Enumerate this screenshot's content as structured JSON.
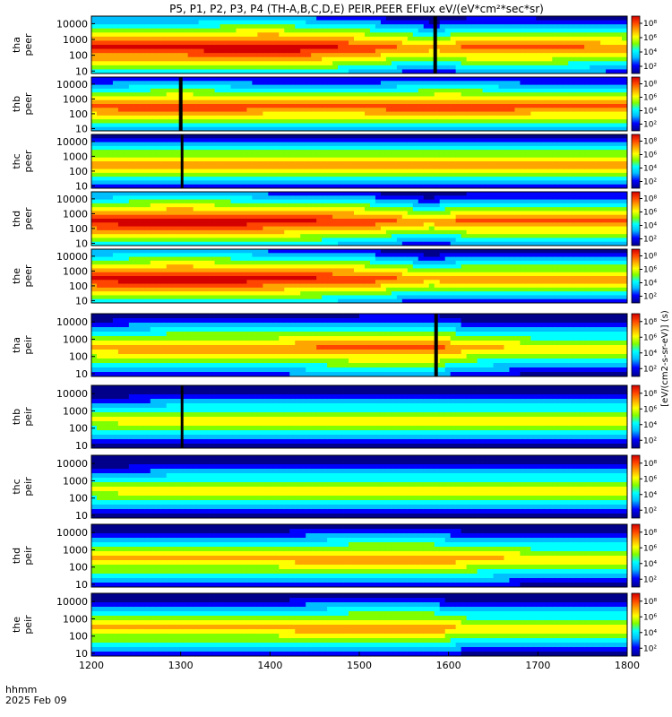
{
  "title": "P5, P1, P2, P3, P4 (TH-A,B,C,D,E) PEIR,PEER EFlux eV/(eV*cm²*sec*sr)",
  "colorbar_label": "[eV/(cm2-s-sr-eV)] (s)",
  "colors": {
    "palette": [
      "#00008b",
      "#0000ff",
      "#00bfff",
      "#00ffff",
      "#7fff00",
      "#ffff00",
      "#ffa500",
      "#ff4500",
      "#d40000"
    ],
    "background": "#ffffff"
  },
  "chart_data": {
    "type": "heatmap",
    "x_axis": {
      "ticks": [
        "1200",
        "1300",
        "1400",
        "1500",
        "1600",
        "1700",
        "1800"
      ],
      "range": [
        1200,
        1800
      ],
      "label_line1": "hhmm",
      "label_line2": "2025 Feb 09"
    },
    "y_ticks": [
      "10",
      "100",
      "1000",
      "10000"
    ],
    "colorbar_ticks": [
      "10²",
      "10⁴",
      "10⁶",
      "10⁸"
    ],
    "panels": [
      {
        "probe": "tha",
        "species": "peer",
        "label_line1": "tha",
        "label_line2": "peer",
        "profile": [
          [
            1200,
            8
          ],
          [
            1300,
            8
          ],
          [
            1400,
            8.5
          ],
          [
            1500,
            7.5
          ],
          [
            1585,
            6
          ],
          [
            1620,
            7
          ],
          [
            1700,
            7
          ],
          [
            1800,
            6.5
          ]
        ],
        "gap": [
          1583,
          1587
        ]
      },
      {
        "probe": "thb",
        "species": "peer",
        "label_line1": "thb",
        "label_line2": "peer",
        "profile": [
          [
            1200,
            7
          ],
          [
            1300,
            7.5
          ],
          [
            1400,
            7
          ],
          [
            1500,
            7
          ],
          [
            1600,
            7.5
          ],
          [
            1700,
            7
          ],
          [
            1800,
            7
          ]
        ],
        "gap": [
          1298,
          1302
        ]
      },
      {
        "probe": "thc",
        "species": "peer",
        "label_line1": "thc",
        "label_line2": "peer",
        "profile": [
          [
            1200,
            6.5
          ],
          [
            1300,
            6.5
          ],
          [
            1400,
            6.5
          ],
          [
            1500,
            6.5
          ],
          [
            1600,
            6.5
          ],
          [
            1700,
            6.5
          ],
          [
            1800,
            6.5
          ]
        ],
        "gap": [
          1300,
          1303
        ]
      },
      {
        "probe": "thd",
        "species": "peer",
        "label_line1": "thd",
        "label_line2": "peer",
        "profile": [
          [
            1200,
            8
          ],
          [
            1300,
            8.5
          ],
          [
            1400,
            8
          ],
          [
            1500,
            7.5
          ],
          [
            1580,
            6
          ],
          [
            1620,
            7
          ],
          [
            1700,
            7
          ],
          [
            1800,
            7
          ]
        ],
        "gap": null
      },
      {
        "probe": "the",
        "species": "peer",
        "label_line1": "the",
        "label_line2": "peer",
        "profile": [
          [
            1200,
            8
          ],
          [
            1300,
            8.5
          ],
          [
            1400,
            8
          ],
          [
            1500,
            7.5
          ],
          [
            1580,
            6
          ],
          [
            1620,
            6.5
          ],
          [
            1700,
            6.5
          ],
          [
            1800,
            6.5
          ]
        ],
        "gap": null
      },
      {
        "probe": "tha",
        "species": "peir",
        "label_line1": "tha",
        "label_line2": "peir",
        "profile": [
          [
            1200,
            6
          ],
          [
            1300,
            6.5
          ],
          [
            1400,
            6.5
          ],
          [
            1500,
            7
          ],
          [
            1590,
            7
          ],
          [
            1620,
            6
          ],
          [
            1700,
            5.5
          ],
          [
            1800,
            5.5
          ]
        ],
        "gap": [
          1584,
          1588
        ]
      },
      {
        "probe": "thb",
        "species": "peir",
        "label_line1": "thb",
        "label_line2": "peir",
        "profile": [
          [
            1200,
            5
          ],
          [
            1300,
            5.5
          ],
          [
            1400,
            5.5
          ],
          [
            1500,
            5.5
          ],
          [
            1600,
            5.5
          ],
          [
            1700,
            5.5
          ],
          [
            1800,
            5.5
          ]
        ],
        "gap": [
          1300,
          1303
        ]
      },
      {
        "probe": "thc",
        "species": "peir",
        "label_line1": "thc",
        "label_line2": "peir",
        "profile": [
          [
            1200,
            5
          ],
          [
            1300,
            5.5
          ],
          [
            1400,
            5.5
          ],
          [
            1500,
            5.5
          ],
          [
            1600,
            5.5
          ],
          [
            1700,
            5.5
          ],
          [
            1800,
            5.5
          ]
        ],
        "gap": null
      },
      {
        "probe": "thd",
        "species": "peir",
        "label_line1": "thd",
        "label_line2": "peir",
        "profile": [
          [
            1200,
            6
          ],
          [
            1300,
            6
          ],
          [
            1400,
            6
          ],
          [
            1500,
            6.5
          ],
          [
            1580,
            6.5
          ],
          [
            1620,
            6
          ],
          [
            1700,
            5.5
          ],
          [
            1800,
            5.5
          ]
        ],
        "gap": null
      },
      {
        "probe": "the",
        "species": "peir",
        "label_line1": "the",
        "label_line2": "peir",
        "profile": [
          [
            1200,
            6
          ],
          [
            1300,
            6
          ],
          [
            1400,
            6
          ],
          [
            1500,
            6.5
          ],
          [
            1580,
            6.5
          ],
          [
            1620,
            5.5
          ],
          [
            1700,
            5.5
          ],
          [
            1800,
            5.5
          ]
        ],
        "gap": null
      }
    ]
  }
}
